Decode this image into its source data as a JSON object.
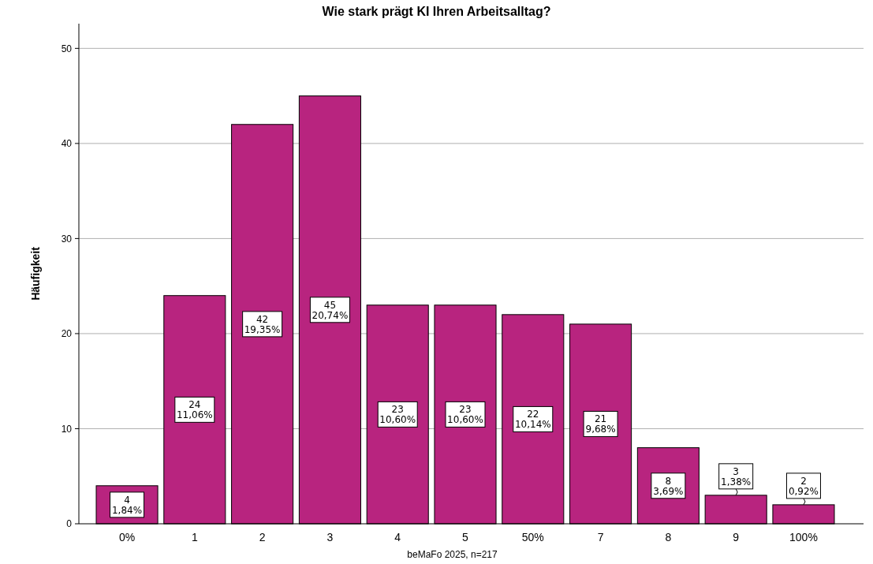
{
  "chart_data": {
    "type": "bar",
    "title": "Wie stark prägt KI Ihren Arbeitsalltag?",
    "xlabel": "beMaFo 2025, n=217",
    "ylabel": "Häufigkeit",
    "categories": [
      "0%",
      "1",
      "2",
      "3",
      "4",
      "5",
      "50%",
      "7",
      "8",
      "9",
      "100%"
    ],
    "values": [
      4,
      24,
      42,
      45,
      23,
      23,
      22,
      21,
      8,
      3,
      2
    ],
    "color": "#b8247f",
    "value_labels": [
      "4\n1,84%",
      "24\n11,06%",
      "42\n19,35%",
      "45\n20,74%",
      "23\n10,60%",
      "23\n10,60%",
      "22\n10,14%",
      "21\n9,68%",
      "8\n3,69%",
      "3\n1,38%",
      "2\n0,92%"
    ],
    "ylim": [
      0,
      52.6
    ],
    "yticks": [
      0,
      10,
      20,
      30,
      40,
      50
    ],
    "grid": "y"
  }
}
